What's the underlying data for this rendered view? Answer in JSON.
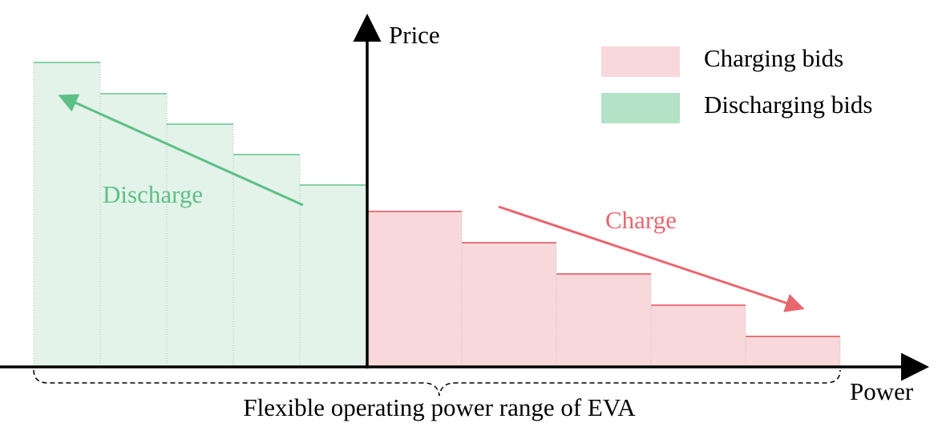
{
  "axes": {
    "y_label": "Price",
    "x_label": "Power"
  },
  "legend": {
    "items": [
      "Charging bids",
      "Discharging bids"
    ]
  },
  "annotations": {
    "discharge": "Discharge",
    "charge": "Charge"
  },
  "caption": "Flexible operating power range of EVA"
}
